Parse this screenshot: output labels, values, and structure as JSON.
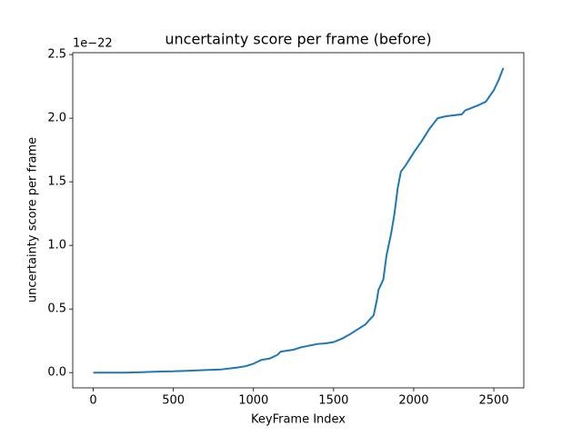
{
  "chart_data": {
    "type": "line",
    "title": "uncertainty score per frame (before)",
    "xlabel": "KeyFrame Index",
    "ylabel": "uncertainty score per frame",
    "y_offset_label": "1e−22",
    "x": [
      0,
      200,
      300,
      400,
      500,
      600,
      700,
      800,
      900,
      950,
      1000,
      1050,
      1100,
      1150,
      1170,
      1250,
      1300,
      1400,
      1450,
      1500,
      1550,
      1600,
      1650,
      1700,
      1720,
      1750,
      1770,
      1780,
      1810,
      1830,
      1860,
      1880,
      1900,
      1920,
      1950,
      2000,
      2050,
      2100,
      2150,
      2200,
      2300,
      2320,
      2400,
      2450,
      2500,
      2530,
      2559
    ],
    "series": [
      {
        "name": "uncertainty",
        "color": "#1f77b4",
        "values": [
          0,
          0,
          0.003,
          0.008,
          0.01,
          0.015,
          0.02,
          0.025,
          0.04,
          0.05,
          0.07,
          0.1,
          0.11,
          0.14,
          0.165,
          0.18,
          0.2,
          0.225,
          0.23,
          0.24,
          0.265,
          0.3,
          0.34,
          0.38,
          0.41,
          0.45,
          0.57,
          0.65,
          0.73,
          0.92,
          1.1,
          1.25,
          1.45,
          1.58,
          1.63,
          1.73,
          1.82,
          1.92,
          2.0,
          2.015,
          2.03,
          2.06,
          2.1,
          2.13,
          2.22,
          2.3,
          2.395
        ]
      }
    ],
    "xlim": [
      -128,
      2687
    ],
    "ylim": [
      -0.12,
      2.515
    ],
    "xticks": [
      0,
      500,
      1000,
      1500,
      2000,
      2500
    ],
    "yticks": [
      {
        "value": 0,
        "label": "0.0"
      },
      {
        "value": 0.5,
        "label": "0.5"
      },
      {
        "value": 1,
        "label": "1.0"
      },
      {
        "value": 1.5,
        "label": "1.5"
      },
      {
        "value": 2,
        "label": "2.0"
      },
      {
        "value": 2.5,
        "label": "2.5"
      }
    ]
  }
}
